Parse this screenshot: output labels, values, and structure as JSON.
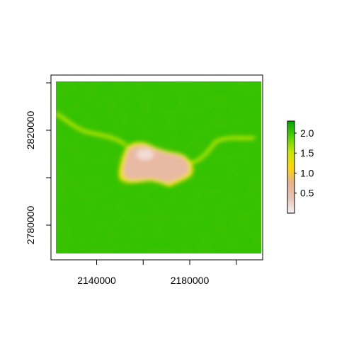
{
  "chart_data": {
    "type": "heatmap",
    "title": "",
    "xlabel": "",
    "ylabel": "",
    "xlim": [
      2125000,
      2200000
    ],
    "ylim": [
      2765000,
      2840000
    ],
    "x_ticks": [
      2140000,
      2180000
    ],
    "x_tick_labels": [
      "2140000",
      "2180000"
    ],
    "x_minor_ticks": [
      2120000,
      2160000,
      2200000
    ],
    "y_ticks": [
      2780000,
      2820000
    ],
    "y_tick_labels": [
      "2780000",
      "2820000"
    ],
    "y_minor_ticks": [
      2800000,
      2840000
    ],
    "colorbar": {
      "min": 0,
      "max": 2.3,
      "ticks": [
        0.5,
        1.0,
        1.5,
        2.0
      ],
      "tick_labels": [
        "0.5",
        "1.0",
        "1.5",
        "2.0"
      ],
      "palette": [
        "#f2f2f2",
        "#e8c2b2",
        "#e6b38a",
        "#ffd700",
        "#c6e600",
        "#4fd200",
        "#00a600"
      ]
    },
    "field_description_values": {
      "background": 2.0,
      "central_patch": 0.2,
      "ridge_lines": 1.5
    }
  }
}
